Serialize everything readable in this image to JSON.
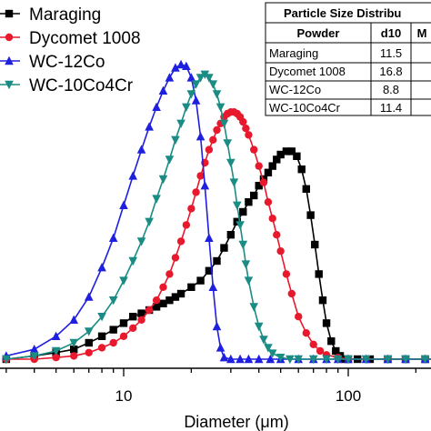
{
  "chart_data": {
    "type": "line",
    "xlabel": "Diameter (μm)",
    "xscale": "log",
    "xlim": [
      3,
      250
    ],
    "ylim": [
      0,
      1
    ],
    "ylabel": "",
    "x_ticks": [
      {
        "value": 10,
        "label": "10"
      },
      {
        "value": 100,
        "label": "100"
      }
    ],
    "legend_position": "top-left",
    "series": [
      {
        "name": "Maraging",
        "color": "#000000",
        "marker": "square",
        "x": [
          3,
          4,
          5,
          6,
          7,
          8,
          9,
          10,
          11,
          12,
          13,
          14,
          15,
          16,
          17,
          18,
          20,
          22,
          24,
          26,
          28,
          30,
          32,
          34,
          36,
          38,
          40,
          42,
          44,
          46,
          48,
          50,
          53,
          56,
          59,
          62,
          65,
          68,
          71,
          74,
          77,
          80,
          84,
          88,
          92,
          96,
          100,
          110,
          125,
          150,
          180,
          220,
          250
        ],
        "y": [
          0.0,
          0.01,
          0.02,
          0.03,
          0.05,
          0.07,
          0.09,
          0.11,
          0.13,
          0.14,
          0.15,
          0.16,
          0.17,
          0.18,
          0.19,
          0.2,
          0.22,
          0.24,
          0.27,
          0.3,
          0.34,
          0.38,
          0.42,
          0.45,
          0.48,
          0.5,
          0.53,
          0.55,
          0.57,
          0.59,
          0.61,
          0.625,
          0.635,
          0.635,
          0.62,
          0.58,
          0.52,
          0.44,
          0.35,
          0.26,
          0.18,
          0.11,
          0.055,
          0.025,
          0.01,
          0.0,
          0.0,
          0.0,
          0.0,
          0.0,
          0.0,
          0.0,
          0.0
        ]
      },
      {
        "name": "Dycomet 1008",
        "color": "#e8192c",
        "marker": "circle",
        "x": [
          3,
          4,
          5,
          6,
          7,
          8,
          9,
          10,
          11,
          12,
          13,
          14,
          15,
          16,
          17,
          18,
          19,
          20,
          21,
          22,
          23,
          24,
          25,
          26,
          27,
          28,
          29,
          30,
          31,
          32,
          33,
          34,
          35,
          36,
          38,
          40,
          42,
          44,
          46,
          48,
          50,
          53,
          56,
          60,
          65,
          70,
          75,
          80,
          90,
          100,
          120,
          150,
          180,
          220,
          250
        ],
        "y": [
          0.0,
          0.0,
          0.005,
          0.01,
          0.02,
          0.035,
          0.05,
          0.07,
          0.095,
          0.12,
          0.15,
          0.18,
          0.22,
          0.26,
          0.31,
          0.36,
          0.41,
          0.46,
          0.51,
          0.56,
          0.6,
          0.64,
          0.67,
          0.7,
          0.72,
          0.74,
          0.75,
          0.755,
          0.755,
          0.75,
          0.74,
          0.725,
          0.705,
          0.685,
          0.64,
          0.59,
          0.54,
          0.48,
          0.43,
          0.38,
          0.33,
          0.26,
          0.2,
          0.13,
          0.08,
          0.045,
          0.025,
          0.013,
          0.005,
          0.0,
          0.0,
          0.0,
          0.0,
          0.0,
          0.0
        ]
      },
      {
        "name": "WC-12Co",
        "color": "#1f1fe0",
        "marker": "triangle-up",
        "x": [
          3,
          4,
          5,
          6,
          7,
          8,
          9,
          10,
          11,
          12,
          13,
          14,
          15,
          16,
          17,
          18,
          19,
          20,
          21,
          22,
          23,
          24,
          25,
          26,
          27,
          28,
          30,
          33,
          36,
          40,
          45,
          50,
          60,
          70,
          80,
          90,
          100,
          120,
          150,
          180,
          220,
          250
        ],
        "y": [
          0.01,
          0.03,
          0.07,
          0.12,
          0.19,
          0.28,
          0.37,
          0.47,
          0.56,
          0.64,
          0.71,
          0.77,
          0.82,
          0.86,
          0.89,
          0.9,
          0.895,
          0.86,
          0.79,
          0.68,
          0.53,
          0.37,
          0.22,
          0.1,
          0.035,
          0.005,
          0.0,
          0.0,
          0.0,
          0.0,
          0.0,
          0.0,
          0.0,
          0.0,
          0.0,
          0.0,
          0.0,
          0.0,
          0.0,
          0.0,
          0.0,
          0.0
        ]
      },
      {
        "name": "WC-10Co4Cr",
        "color": "#1a8c84",
        "marker": "triangle-down",
        "x": [
          3,
          4,
          5,
          6,
          7,
          8,
          9,
          10,
          11,
          12,
          13,
          14,
          15,
          16,
          17,
          18,
          19,
          20,
          21,
          22,
          23,
          24,
          25,
          26,
          27,
          28,
          29,
          30,
          31,
          32,
          33,
          34,
          35,
          36,
          38,
          40,
          42,
          44,
          46,
          50,
          55,
          60,
          70,
          80,
          90,
          100,
          120,
          150,
          180,
          220,
          250
        ],
        "y": [
          0.0,
          0.01,
          0.025,
          0.05,
          0.085,
          0.13,
          0.18,
          0.24,
          0.3,
          0.36,
          0.42,
          0.49,
          0.55,
          0.61,
          0.67,
          0.72,
          0.77,
          0.81,
          0.84,
          0.86,
          0.87,
          0.86,
          0.84,
          0.81,
          0.77,
          0.72,
          0.66,
          0.6,
          0.54,
          0.47,
          0.41,
          0.35,
          0.29,
          0.24,
          0.16,
          0.1,
          0.06,
          0.035,
          0.018,
          0.005,
          0.0,
          0.0,
          0.0,
          0.0,
          0.0,
          0.0,
          0.0,
          0.0,
          0.0,
          0.0,
          0.0
        ]
      }
    ]
  },
  "table": {
    "title": "Particle Size Distribu",
    "headers": [
      "Powder",
      "d10",
      "M"
    ],
    "rows": [
      [
        "Maraging",
        "11.5",
        ""
      ],
      [
        "Dycomet 1008",
        "16.8",
        ""
      ],
      [
        "WC-12Co",
        "8.8",
        ""
      ],
      [
        "WC-10Co4Cr",
        "11.4",
        ""
      ]
    ]
  }
}
